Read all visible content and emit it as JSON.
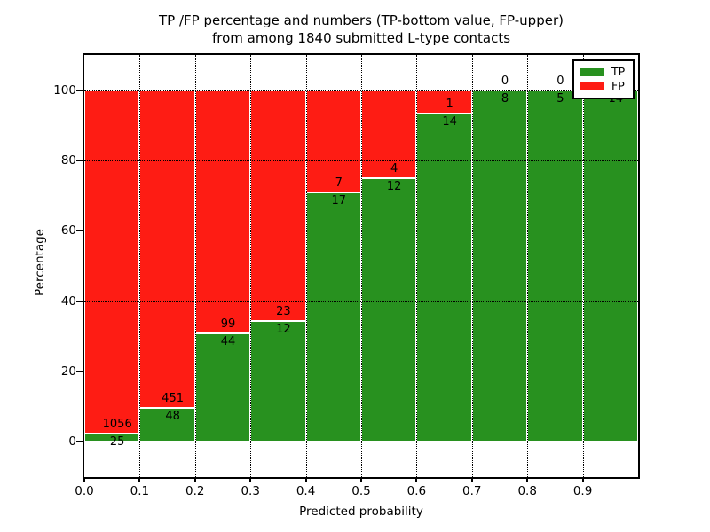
{
  "title": {
    "line1": "TP /FP percentage and numbers (TP-bottom value, FP-upper)",
    "line2": "from among 1840 submitted L-type contacts"
  },
  "axes": {
    "xlabel": "Predicted probability",
    "ylabel": "Percentage",
    "x_tick_labels": [
      "0.0",
      "0.1",
      "0.2",
      "0.3",
      "0.4",
      "0.5",
      "0.6",
      "0.7",
      "0.8",
      "0.9"
    ],
    "y_tick_labels": [
      "0",
      "20",
      "40",
      "60",
      "80",
      "100"
    ]
  },
  "legend": {
    "position": "upper right",
    "items": [
      {
        "label": "TP",
        "color": "#28911f"
      },
      {
        "label": "FP",
        "color": "#fe1c14"
      }
    ]
  },
  "colors": {
    "tp_green": "#28911f",
    "fp_red": "#fe1c14",
    "grid": "#000000",
    "bar_edge": "#ffffff"
  },
  "chart_data": {
    "type": "bar",
    "stacked": true,
    "normalized": "each bar scaled to 100%",
    "title": "TP /FP percentage and numbers (TP-bottom value, FP-upper) from among 1840 submitted L-type contacts",
    "xlabel": "Predicted probability",
    "ylabel": "Percentage",
    "total_contacts": 1840,
    "bin_edges": [
      0.0,
      0.1,
      0.2,
      0.3,
      0.4,
      0.5,
      0.6,
      0.7,
      0.8,
      0.9,
      1.0
    ],
    "categories": [
      "0.0-0.1",
      "0.1-0.2",
      "0.2-0.3",
      "0.3-0.4",
      "0.4-0.5",
      "0.5-0.6",
      "0.6-0.7",
      "0.7-0.8",
      "0.8-0.9",
      "0.9-1.0"
    ],
    "series": [
      {
        "name": "TP",
        "color": "#28911f",
        "counts": [
          25,
          48,
          44,
          12,
          17,
          12,
          14,
          8,
          5,
          14
        ]
      },
      {
        "name": "FP",
        "color": "#fe1c14",
        "counts": [
          1056,
          451,
          99,
          23,
          7,
          4,
          1,
          0,
          0,
          0
        ]
      }
    ],
    "tp_percent_of_bin": [
      2.31,
      9.62,
      30.77,
      34.29,
      70.83,
      75.0,
      93.33,
      100.0,
      100.0,
      100.0
    ],
    "xlim": [
      0.0,
      1.0
    ],
    "ylim": [
      -10,
      110
    ],
    "y_gridlines": [
      0,
      20,
      40,
      60,
      80,
      100
    ],
    "grid": true,
    "legend_position": "upper right",
    "note_hidden_label": "FP count label of last bin is covered by the legend box"
  }
}
